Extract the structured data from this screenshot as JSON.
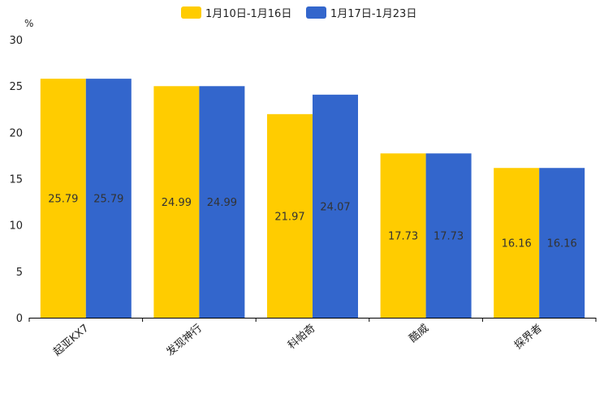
{
  "chart_data": {
    "type": "bar",
    "title": "",
    "xlabel": "",
    "ylabel": "%",
    "ylim": [
      0,
      30
    ],
    "yticks": [
      0,
      5,
      10,
      15,
      20,
      25,
      30
    ],
    "grid": false,
    "legend_position": "top-center",
    "categories": [
      "起亚KX7",
      "发现神行",
      "科帕奇",
      "酷威",
      "探界者"
    ],
    "series": [
      {
        "name": "1月10日-1月16日",
        "color": "#FFCC00",
        "values": [
          25.79,
          24.99,
          21.97,
          17.73,
          16.16
        ],
        "labels": [
          "25.79",
          "24.99",
          "21.97",
          "17.73",
          "16.16"
        ]
      },
      {
        "name": "1月17日-1月23日",
        "color": "#3366CC",
        "values": [
          25.79,
          24.99,
          24.07,
          17.73,
          16.16
        ],
        "labels": [
          "25.79",
          "24.99",
          "24.07",
          "17.73",
          "16.16"
        ]
      }
    ]
  }
}
